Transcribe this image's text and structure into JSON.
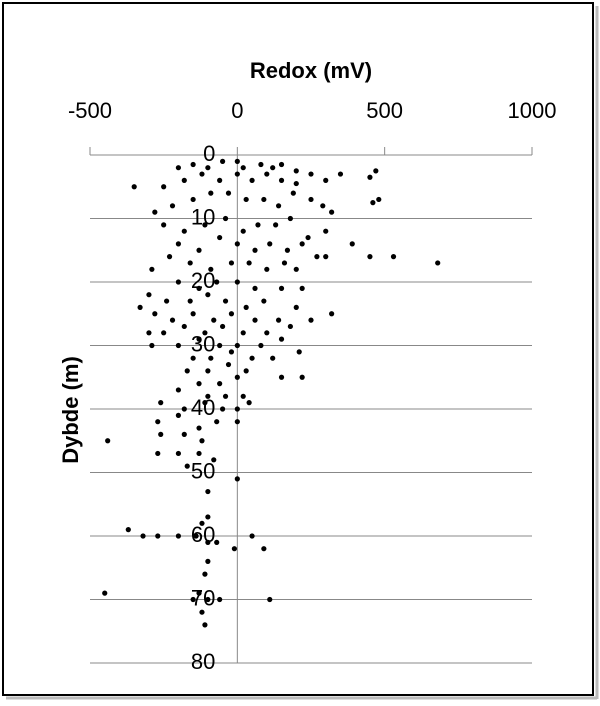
{
  "chart_data": {
    "type": "scatter",
    "x_label": "Redox (mV)",
    "y_label": "Dybde (m)",
    "x_axis_position": "top",
    "y_reversed": true,
    "grid": true,
    "xlim": [
      -500,
      1000
    ],
    "xticks": [
      -500,
      0,
      500,
      1000
    ],
    "ylim": [
      0,
      80
    ],
    "yticks": [
      0,
      10,
      20,
      30,
      40,
      50,
      60,
      70,
      80
    ],
    "series": [
      {
        "color": "#000000",
        "x": [
          -200,
          -150,
          -100,
          -50,
          0,
          20,
          80,
          120,
          150,
          200,
          250,
          -350,
          -250,
          -180,
          -120,
          -60,
          0,
          50,
          100,
          150,
          200,
          300,
          350,
          450,
          470,
          460,
          480,
          -280,
          -220,
          -150,
          -90,
          -30,
          30,
          90,
          140,
          190,
          250,
          290,
          320,
          -250,
          -180,
          -110,
          -40,
          20,
          70,
          130,
          180,
          240,
          300,
          -200,
          -130,
          -60,
          0,
          60,
          110,
          170,
          220,
          270,
          390,
          450,
          530,
          680,
          -290,
          -230,
          -160,
          -90,
          -20,
          40,
          100,
          160,
          200,
          300,
          -200,
          -130,
          -70,
          0,
          60,
          150,
          220,
          -300,
          -240,
          -160,
          -100,
          -40,
          30,
          90,
          200,
          -330,
          -280,
          -220,
          -150,
          -80,
          -20,
          60,
          140,
          250,
          320,
          -300,
          -250,
          -180,
          -110,
          -50,
          20,
          100,
          180,
          -290,
          -200,
          -130,
          -60,
          0,
          80,
          150,
          210,
          -150,
          -90,
          -20,
          50,
          120,
          -170,
          -100,
          -30,
          30,
          150,
          220,
          -200,
          -130,
          -60,
          0,
          -100,
          -40,
          20,
          -260,
          -180,
          -110,
          -50,
          0,
          40,
          -270,
          -200,
          -130,
          -70,
          0,
          -260,
          -180,
          -120,
          -440,
          -270,
          -200,
          -130,
          -80,
          -170,
          0,
          -100,
          -100,
          -120,
          -370,
          -320,
          -270,
          -200,
          -140,
          -100,
          -70,
          -10,
          50,
          90,
          -100,
          -110,
          -450,
          -150,
          -130,
          -100,
          -60,
          110,
          -120,
          -110
        ],
        "y": [
          2,
          1.5,
          2,
          1,
          1,
          2,
          1.5,
          2,
          1.5,
          2.5,
          3,
          5,
          5,
          4,
          3,
          4,
          3,
          4,
          3,
          4,
          4.5,
          4,
          3,
          3.5,
          2.5,
          7.5,
          7,
          9,
          8,
          7,
          6,
          6,
          7,
          7,
          8,
          6,
          7,
          8,
          9,
          11,
          12,
          11,
          10,
          12,
          11,
          11,
          10,
          13,
          12,
          14,
          15,
          13,
          14,
          15,
          14,
          15,
          14,
          16,
          14,
          16,
          16,
          17,
          18,
          16,
          17,
          18,
          17,
          17,
          18,
          17,
          18,
          16,
          20,
          21,
          20,
          20,
          21,
          21,
          21,
          22,
          23,
          23,
          22,
          23,
          24,
          23,
          24,
          24,
          25,
          26,
          25,
          26,
          25,
          26,
          26,
          26,
          25,
          28,
          28,
          27,
          28,
          27,
          28,
          28,
          27,
          30,
          30,
          29,
          30,
          30,
          30,
          29,
          31,
          32,
          32,
          31,
          32,
          32,
          34,
          34,
          33,
          34,
          35,
          35,
          37,
          36,
          36,
          35,
          38,
          38,
          38,
          39,
          40,
          39,
          40,
          40,
          39,
          42,
          41,
          43,
          42,
          42,
          44,
          44,
          45,
          45,
          47,
          47,
          47,
          48,
          49,
          51,
          53,
          57,
          58,
          59,
          60,
          60,
          60,
          60,
          61,
          61,
          62,
          60,
          62,
          64,
          66,
          69,
          70,
          69,
          70,
          70,
          70,
          72,
          74
        ]
      }
    ]
  }
}
